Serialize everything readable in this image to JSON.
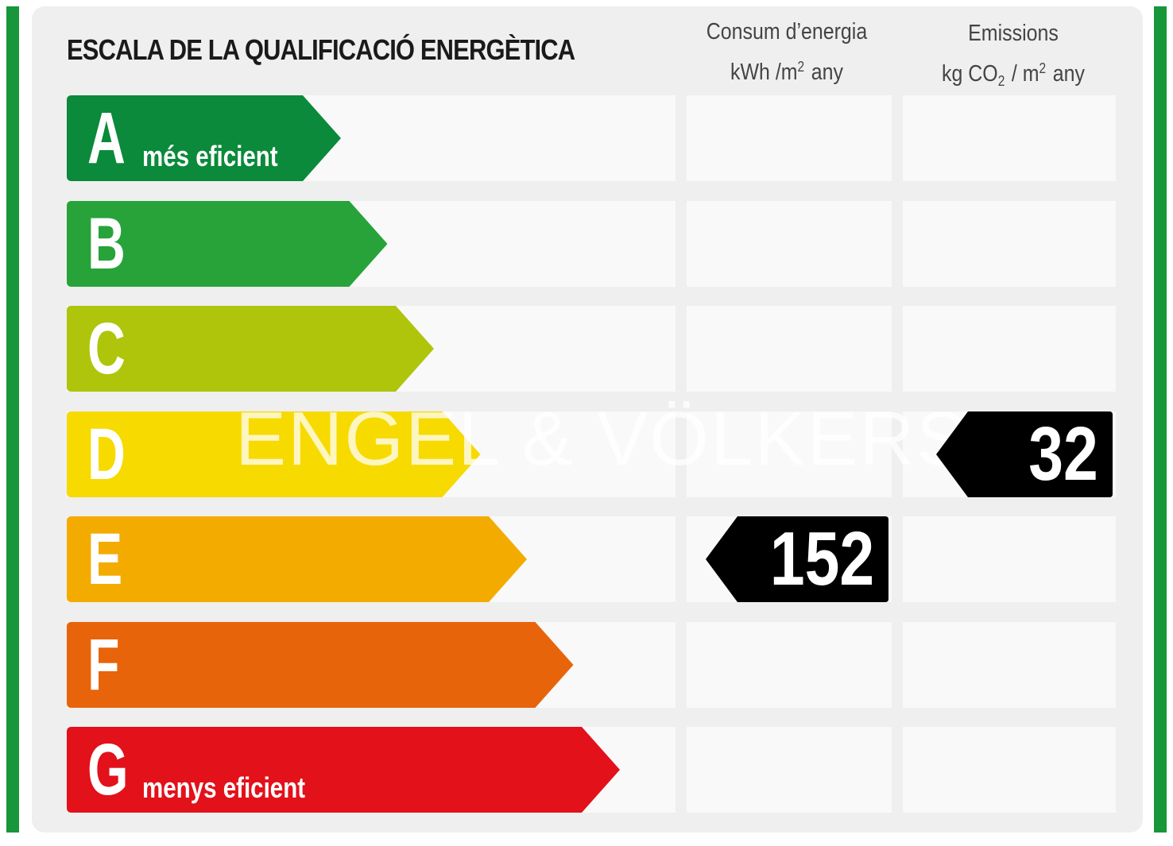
{
  "title": "ESCALA DE LA QUALIFICACIÓ ENERGÈTICA",
  "columns": {
    "energy": {
      "line1": "Consum d’energia",
      "unit": "kWh /m",
      "exp": "2",
      "period": "any"
    },
    "emissions": {
      "line1": "Emissions",
      "unit_a": "kg CO",
      "sub": "2",
      "unit_b": "/ m",
      "exp": "2",
      "period": "any"
    }
  },
  "ratings": [
    {
      "letter": "A",
      "sublabel": "més eficient",
      "color": "#0a8a3a"
    },
    {
      "letter": "B",
      "sublabel": "",
      "color": "#27a33a"
    },
    {
      "letter": "C",
      "sublabel": "",
      "color": "#aec50b"
    },
    {
      "letter": "D",
      "sublabel": "",
      "color": "#f6da00"
    },
    {
      "letter": "E",
      "sublabel": "",
      "color": "#f4ab00"
    },
    {
      "letter": "F",
      "sublabel": "",
      "color": "#e8640a"
    },
    {
      "letter": "G",
      "sublabel": "menys eficient",
      "color": "#e2111a"
    }
  ],
  "energy_rating": {
    "value": "152",
    "letter": "E"
  },
  "emissions_rating": {
    "value": "32",
    "letter": "D"
  },
  "watermark": "ENGEL & VÖLKERS"
}
